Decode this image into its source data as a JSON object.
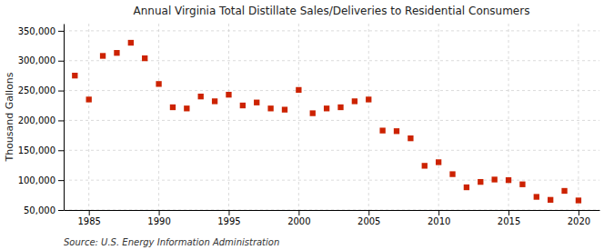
{
  "chart_data": {
    "type": "scatter",
    "title": "Annual Virginia Total Distillate Sales/Deliveries to Residential Consumers",
    "y_label": "Thousand Gallons",
    "source": "Source: U.S. Energy Information Administration",
    "color": "#cc2200",
    "marker": "square",
    "grid": true,
    "xlim": [
      1983.2,
      2021.5
    ],
    "xticks": [
      1985,
      1990,
      1995,
      2000,
      2005,
      2010,
      2015,
      2020
    ],
    "ylim": [
      50000,
      362000
    ],
    "yticks": [
      {
        "value": 50000,
        "label": "50,000"
      },
      {
        "value": 100000,
        "label": "100,000"
      },
      {
        "value": 150000,
        "label": "150,000"
      },
      {
        "value": 200000,
        "label": "200,000"
      },
      {
        "value": 250000,
        "label": "250,000"
      },
      {
        "value": 300000,
        "label": "300,000"
      },
      {
        "value": 350000,
        "label": "350,000"
      }
    ],
    "x": [
      1984,
      1985,
      1986,
      1987,
      1988,
      1989,
      1990,
      1991,
      1992,
      1993,
      1994,
      1995,
      1996,
      1997,
      1998,
      1999,
      2000,
      2001,
      2002,
      2003,
      2004,
      2005,
      2006,
      2007,
      2008,
      2009,
      2010,
      2011,
      2012,
      2013,
      2014,
      2015,
      2016,
      2017,
      2018,
      2019,
      2020
    ],
    "values": [
      275000,
      235000,
      308000,
      313000,
      330000,
      304000,
      261000,
      222000,
      220000,
      240000,
      232000,
      243000,
      225000,
      230000,
      220000,
      218000,
      251000,
      212000,
      220000,
      222000,
      232000,
      235000,
      183000,
      182000,
      170000,
      124000,
      130000,
      110000,
      88000,
      97000,
      101000,
      100000,
      93000,
      72000,
      67000,
      82000,
      66000
    ]
  }
}
